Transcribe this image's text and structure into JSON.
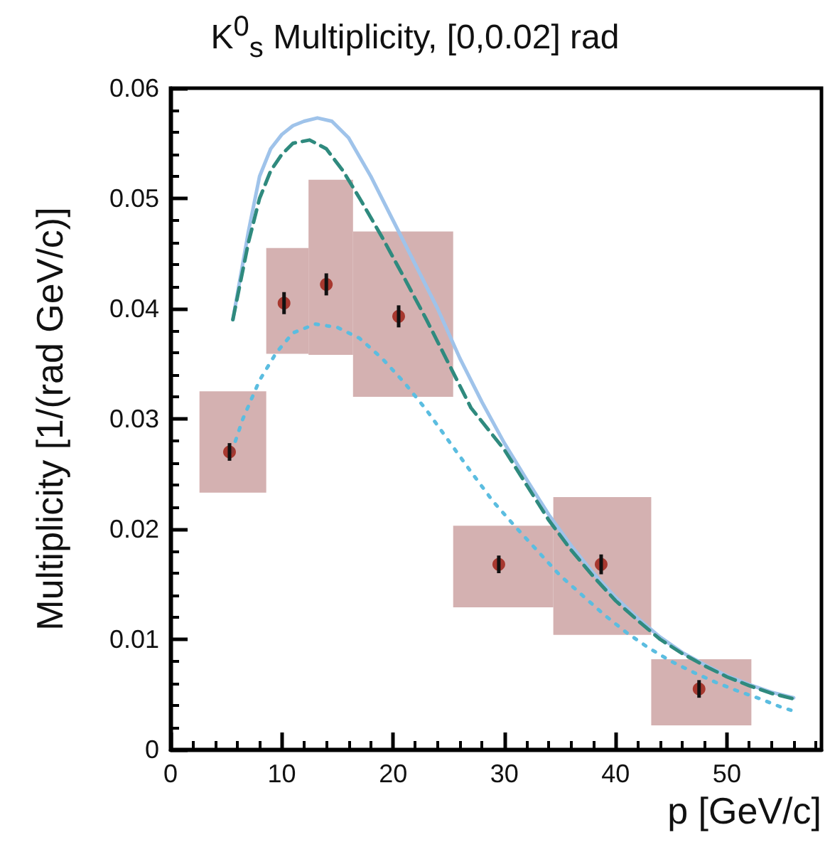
{
  "chart_data": {
    "type": "scatter",
    "title": "K$^{0}$$_{s}$ Multiplicity, [0,0.02] rad",
    "xlabel": "p [GeV/c]",
    "ylabel": "Multiplicity [1/(rad GeV/c)]",
    "xlim": [
      0,
      58.5
    ],
    "xticks": [
      0,
      10,
      20,
      30,
      40,
      50
    ],
    "ylim": [
      0,
      0.06
    ],
    "yticks": [
      0,
      0.01,
      0.02,
      0.03,
      0.04,
      0.05,
      0.06
    ],
    "grid": false,
    "series": [
      {
        "type": "histogram",
        "color": "#d4b1b1",
        "bins": [
          2.6,
          8.6,
          12.4,
          16.4,
          25.4,
          34.4,
          43.2,
          52.2
        ],
        "base": [
          0.0233,
          0.0359,
          0.0358,
          0.032,
          0.0129,
          0.0104,
          0.0022
        ],
        "values": [
          0.0092,
          0.0096,
          0.0159,
          0.015,
          0.0074,
          0.0125,
          0.006
        ]
      },
      {
        "type": "line",
        "line_style": "solid",
        "marker": "none",
        "color": "#9fc3ea",
        "x": [
          5.6,
          7,
          8,
          9,
          10,
          11,
          12,
          13.2,
          14.5,
          16,
          18,
          20,
          22,
          24,
          26,
          28,
          30,
          32,
          34,
          36,
          38,
          40,
          42,
          44,
          46,
          48,
          50,
          52,
          54,
          56
        ],
        "values": [
          0.039,
          0.047,
          0.052,
          0.0545,
          0.0558,
          0.0566,
          0.057,
          0.0573,
          0.057,
          0.0555,
          0.052,
          0.048,
          0.044,
          0.04,
          0.0355,
          0.0315,
          0.0278,
          0.0245,
          0.0213,
          0.0185,
          0.016,
          0.0138,
          0.0119,
          0.0102,
          0.0088,
          0.0077,
          0.0067,
          0.0059,
          0.0052,
          0.0047
        ]
      },
      {
        "type": "line",
        "line_style": "dashed",
        "marker": "none",
        "color": "#2f8a7e",
        "x": [
          5.6,
          7,
          8,
          9,
          10,
          11,
          12.5,
          14,
          15.5,
          17,
          19,
          21,
          23,
          25,
          27,
          30,
          32,
          34,
          36,
          38,
          40,
          42,
          44,
          46,
          48,
          50,
          52,
          54,
          56
        ],
        "values": [
          0.039,
          0.046,
          0.05,
          0.0525,
          0.054,
          0.055,
          0.0553,
          0.0545,
          0.0525,
          0.05,
          0.0465,
          0.0428,
          0.039,
          0.035,
          0.031,
          0.0272,
          0.024,
          0.0208,
          0.0181,
          0.0157,
          0.0135,
          0.0117,
          0.01,
          0.0087,
          0.0076,
          0.0066,
          0.0058,
          0.0051,
          0.0046
        ]
      },
      {
        "type": "line",
        "line_style": "dotted",
        "marker": "none",
        "color": "#5bbde0",
        "x": [
          5.5,
          6.5,
          8,
          9.5,
          11,
          13,
          15,
          17,
          19,
          21,
          23,
          25,
          27,
          29,
          31,
          33,
          35,
          37,
          39,
          41,
          43,
          45,
          47,
          49,
          51,
          53,
          55,
          56
        ],
        "values": [
          0.027,
          0.03,
          0.0335,
          0.036,
          0.0378,
          0.0386,
          0.0383,
          0.0373,
          0.0355,
          0.0333,
          0.0308,
          0.028,
          0.0252,
          0.0225,
          0.0202,
          0.018,
          0.0158,
          0.014,
          0.0122,
          0.0106,
          0.0092,
          0.008,
          0.007,
          0.0061,
          0.0053,
          0.0046,
          0.0038,
          0.0035
        ]
      },
      {
        "marker": "circle",
        "color": "#9b1a0f",
        "x": [
          5.3,
          10.2,
          14,
          20.5,
          29.5,
          38.7,
          47.5
        ],
        "values": [
          0.027,
          0.0405,
          0.0422,
          0.0393,
          0.0168,
          0.0168,
          0.0055
        ],
        "errors": [
          0.0008,
          0.001,
          0.001,
          0.001,
          0.0008,
          0.0009,
          0.0008
        ]
      }
    ]
  }
}
